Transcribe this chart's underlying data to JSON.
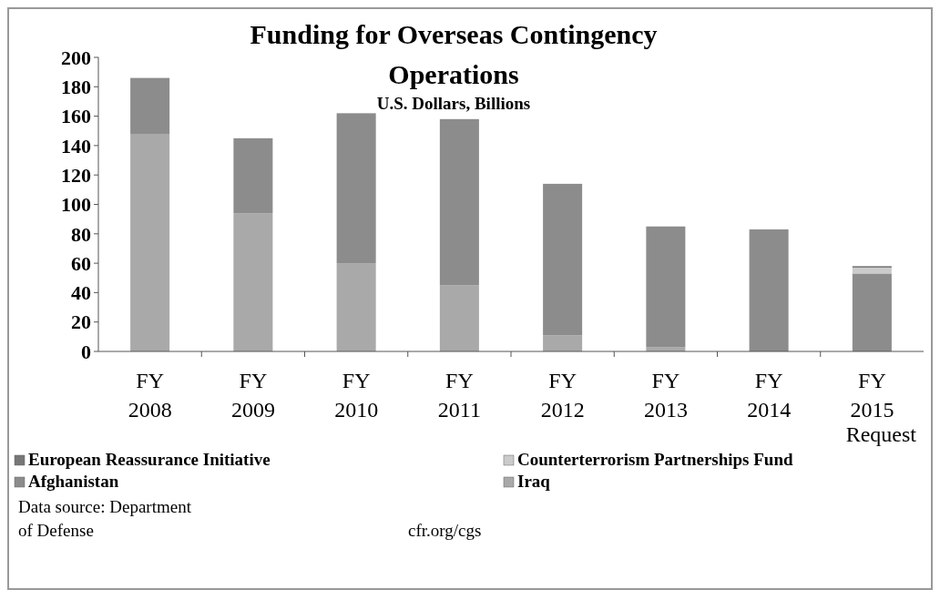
{
  "chart_data": {
    "type": "bar",
    "stacked": true,
    "title": "Funding for Overseas Contingency Operations",
    "subtitle": "U.S. Dollars, Billions",
    "categories": [
      "FY 2008",
      "FY 2009",
      "FY 2010",
      "FY 2011",
      "FY 2012",
      "FY 2013",
      "FY 2014",
      "FY 2015 Request"
    ],
    "series": [
      {
        "name": "Iraq",
        "color": "#a9a9a9",
        "values": [
          148,
          94,
          60,
          45,
          11,
          3,
          0,
          0
        ]
      },
      {
        "name": "Afghanistan",
        "color": "#8c8c8c",
        "values": [
          38,
          51,
          102,
          113,
          103,
          82,
          83,
          53
        ]
      },
      {
        "name": "Counterterrorism Partnerships Fund",
        "color": "#cbcbcb",
        "values": [
          0,
          0,
          0,
          0,
          0,
          0,
          0,
          4
        ]
      },
      {
        "name": "European Reassurance Initiative",
        "color": "#777777",
        "values": [
          0,
          0,
          0,
          0,
          0,
          0,
          0,
          1
        ]
      }
    ],
    "ylim": [
      0,
      200
    ],
    "yticks": [
      0,
      20,
      40,
      60,
      80,
      100,
      120,
      140,
      160,
      180,
      200
    ],
    "legend": "bottom",
    "annotations": [
      "Data source: Department of Defense",
      "cfr.org/cgs"
    ]
  }
}
